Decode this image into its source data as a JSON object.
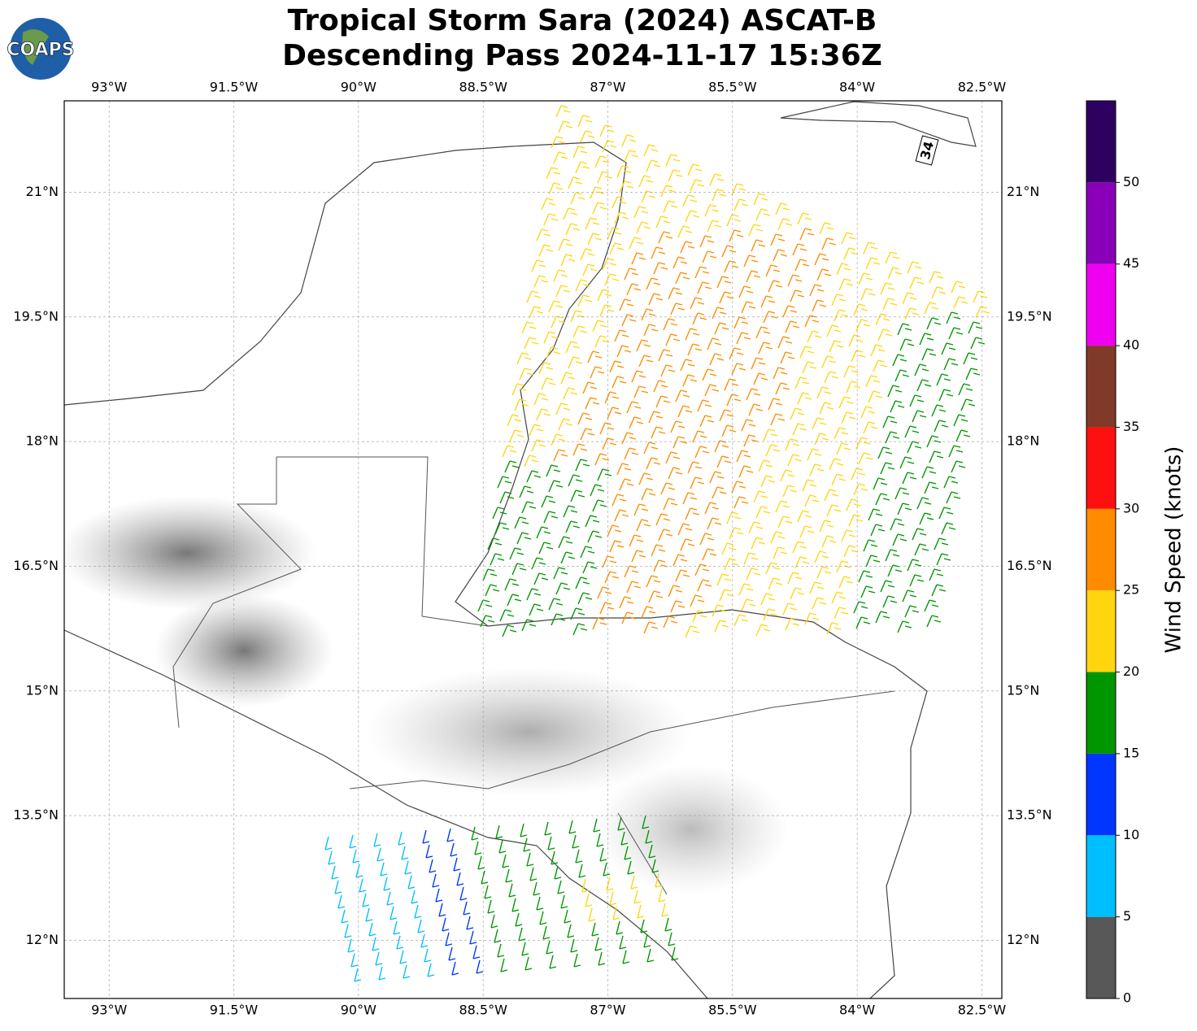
{
  "chart_data": {
    "type": "map",
    "title": "Tropical Storm Sara (2024) ASCAT-B",
    "subtitle": "Descending Pass 2024-11-17 15:36Z",
    "logo_text": "COAPS",
    "storm_label": "34",
    "xlim": [
      -93.54,
      -82.26
    ],
    "ylim": [
      11.3,
      22.1
    ],
    "xticks": [
      {
        "value": -93,
        "label": "93°W"
      },
      {
        "value": -91.5,
        "label": "91.5°W"
      },
      {
        "value": -90,
        "label": "90°W"
      },
      {
        "value": -88.5,
        "label": "88.5°W"
      },
      {
        "value": -87,
        "label": "87°W"
      },
      {
        "value": -85.5,
        "label": "85.5°W"
      },
      {
        "value": -84,
        "label": "84°W"
      },
      {
        "value": -82.5,
        "label": "82.5°W"
      }
    ],
    "yticks": [
      {
        "value": 12,
        "label": "12°N"
      },
      {
        "value": 13.5,
        "label": "13.5°N"
      },
      {
        "value": 15,
        "label": "15°N"
      },
      {
        "value": 16.5,
        "label": "16.5°N"
      },
      {
        "value": 18,
        "label": "18°N"
      },
      {
        "value": 19.5,
        "label": "19.5°N"
      },
      {
        "value": 21,
        "label": "21°N"
      }
    ],
    "grid": true,
    "colorbar": {
      "label": "Wind Speed (knots)",
      "lim": [
        0,
        55
      ],
      "bounds": [
        0,
        5,
        10,
        15,
        20,
        25,
        30,
        35,
        40,
        45,
        50,
        55
      ],
      "colors": [
        "#585858",
        "#00bfff",
        "#0036ff",
        "#009600",
        "#ffd510",
        "#ff8c00",
        "#ff1010",
        "#823a28",
        "#f000f0",
        "#8a00b8",
        "#2e0060"
      ],
      "ticks": [
        0,
        5,
        10,
        15,
        20,
        25,
        30,
        35,
        40,
        45,
        50
      ]
    }
  }
}
